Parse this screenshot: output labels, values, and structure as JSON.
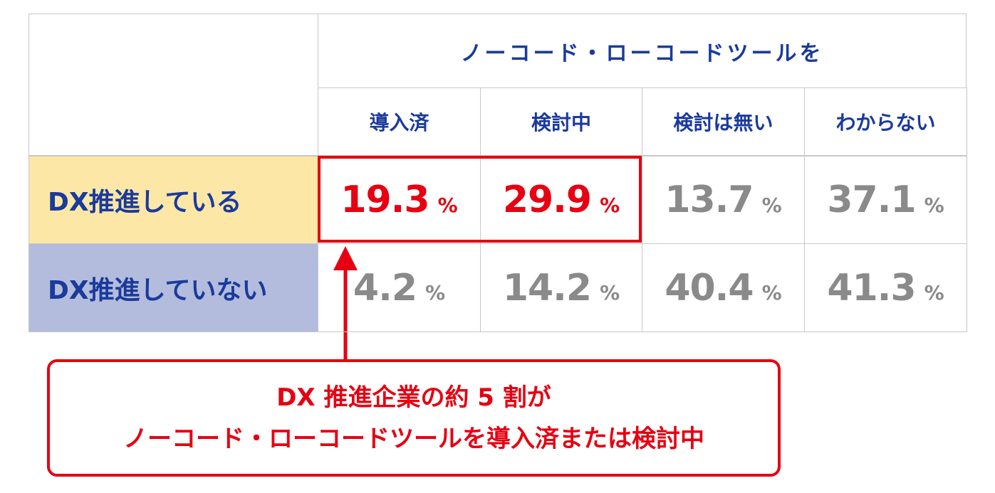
{
  "table": {
    "group_header": "ノーコード・ローコードツールを",
    "columns": [
      "導入済",
      "検討中",
      "検討は無い",
      "わからない"
    ],
    "unit": "%",
    "rows": [
      {
        "label": "DX推進している",
        "cells": [
          19.3,
          29.9,
          13.7,
          37.1
        ]
      },
      {
        "label": "DX推進していない",
        "cells": [
          4.2,
          14.2,
          40.4,
          41.3
        ]
      }
    ]
  },
  "callout": {
    "lines": [
      "DX 推進企業の約 5 割が",
      "ノーコード・ローコードツールを導入済または検討中"
    ]
  }
}
